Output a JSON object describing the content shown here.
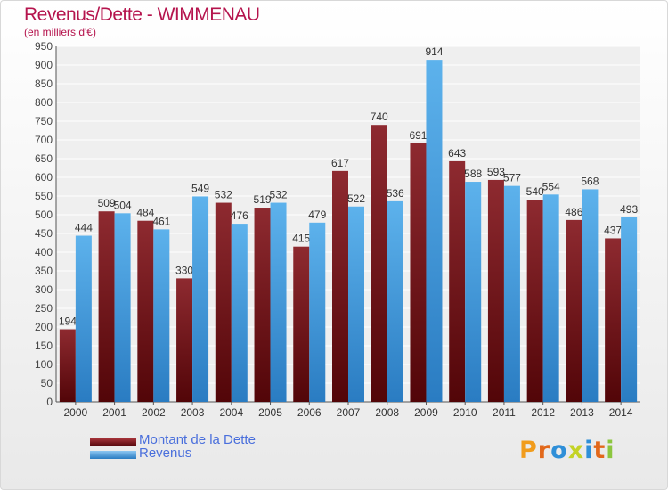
{
  "chart_data": {
    "type": "bar",
    "title": "Revenus/Dette - WIMMENAU",
    "subtitle": "(en milliers d'€)",
    "categories": [
      "2000",
      "2001",
      "2002",
      "2003",
      "2004",
      "2005",
      "2006",
      "2007",
      "2008",
      "2009",
      "2010",
      "2011",
      "2012",
      "2013",
      "2014"
    ],
    "series": [
      {
        "name": "Montant de la Dette",
        "color": "#7a1a1e",
        "values": [
          194,
          509,
          484,
          330,
          532,
          519,
          415,
          617,
          740,
          691,
          643,
          593,
          540,
          486,
          437
        ]
      },
      {
        "name": "Revenus",
        "color": "#3a8fd6",
        "values": [
          444,
          504,
          461,
          549,
          476,
          532,
          479,
          522,
          536,
          914,
          588,
          577,
          554,
          568,
          493
        ]
      }
    ],
    "ylim": [
      0,
      950
    ],
    "ytick_step": 50,
    "xlabel": "",
    "ylabel": "",
    "grid": true,
    "legend_position": "bottom-left"
  },
  "logo": {
    "text": "Proxiti"
  }
}
